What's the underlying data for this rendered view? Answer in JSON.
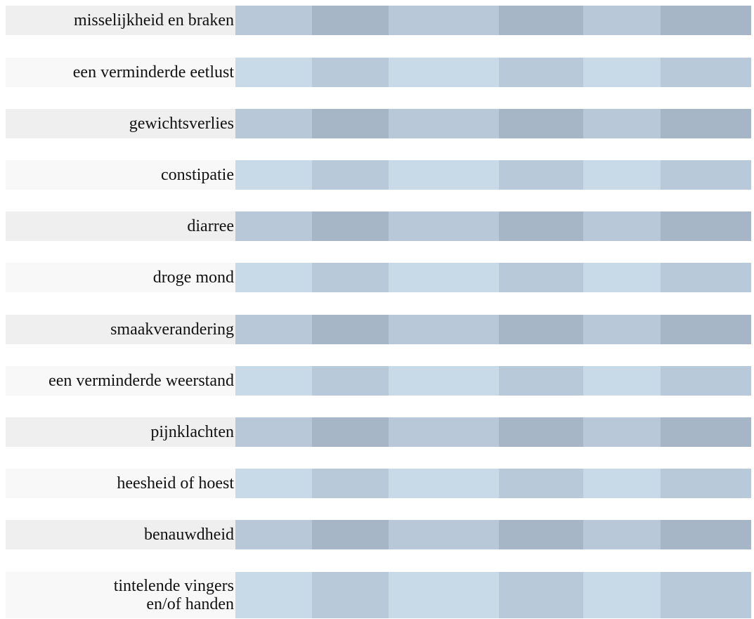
{
  "symptoms": [
    "misselijkheid en braken",
    "een verminderde eetlust",
    "gewichtsverlies",
    "constipatie",
    "diarree",
    "droge mond",
    "smaakverandering",
    "een verminderde weerstand",
    "pijnklachten",
    "heesheid of hoest",
    "benauwdheid",
    "tintelende vingers\nen/of handen"
  ],
  "colors": {
    "label_bg_dark": "#efefef",
    "label_bg_light": "#f8f8f8",
    "dark_row_cells": [
      "#b8c8d8",
      "#a6b6c6",
      "#b8c8d8",
      "#a6b6c6",
      "#b8c8d8",
      "#a6b6c6"
    ],
    "light_row_cells": [
      "#c8d9e8",
      "#b8c9d9",
      "#c8d9e8",
      "#b8c9d9",
      "#c8d9e8",
      "#b8c9d9"
    ]
  }
}
